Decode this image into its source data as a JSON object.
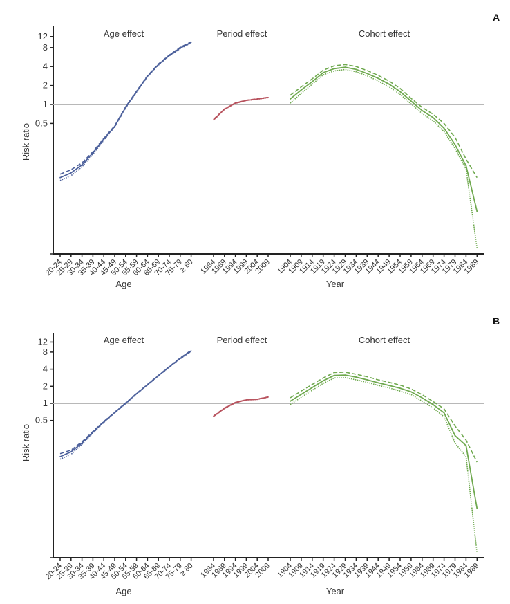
{
  "colors": {
    "age": "#4d619c",
    "period": "#b8535e",
    "cohort": "#6fa94f",
    "ref": "#b8b8b8",
    "axis": "#222222"
  },
  "chart_data": [
    {
      "type": "line",
      "panel": "A",
      "ylabel": "Risk ratio",
      "yscale": "log",
      "yticks": [
        0.5,
        1,
        2,
        4,
        8,
        12
      ],
      "ytick_labels": [
        "0.5",
        "1",
        "2",
        "4",
        "8",
        "12"
      ],
      "reference_line": 1,
      "subplots": [
        {
          "title": "Age effect",
          "xlabel": "Age",
          "color_key": "age",
          "categories": [
            "20-24",
            "25-29",
            "30-34",
            "35-39",
            "40-44",
            "45-49",
            "50-54",
            "55-59",
            "60-64",
            "65-69",
            "70-74",
            "75-79",
            "≥ 80"
          ],
          "estimate": [
            0.069,
            0.082,
            0.11,
            0.17,
            0.28,
            0.45,
            0.9,
            1.6,
            2.8,
            4.3,
            6.0,
            7.9,
            9.7
          ],
          "upper": [
            0.078,
            0.092,
            0.118,
            0.178,
            0.29,
            0.46,
            0.92,
            1.63,
            2.85,
            4.4,
            6.1,
            8.1,
            9.9
          ],
          "lower": [
            0.062,
            0.074,
            0.102,
            0.162,
            0.27,
            0.44,
            0.88,
            1.57,
            2.75,
            4.2,
            5.9,
            7.7,
            9.5
          ]
        },
        {
          "title": "Period effect",
          "xlabel": "",
          "color_key": "period",
          "categories": [
            "1984",
            "1989",
            "1994",
            "1999",
            "2004",
            "2009"
          ],
          "estimate": [
            0.57,
            0.84,
            1.05,
            1.16,
            1.22,
            1.29
          ],
          "upper": [
            0.58,
            0.85,
            1.06,
            1.17,
            1.23,
            1.3
          ],
          "lower": [
            0.56,
            0.83,
            1.04,
            1.15,
            1.21,
            1.28
          ]
        },
        {
          "title": "Cohort effect",
          "xlabel": "Year",
          "color_key": "cohort",
          "categories": [
            "1904",
            "1909",
            "1914",
            "1919",
            "1924",
            "1929",
            "1934",
            "1939",
            "1944",
            "1949",
            "1954",
            "1959",
            "1964",
            "1969",
            "1974",
            "1979",
            "1984",
            "1989"
          ],
          "estimate": [
            1.22,
            1.7,
            2.3,
            3.2,
            3.7,
            3.9,
            3.6,
            3.1,
            2.6,
            2.1,
            1.6,
            1.13,
            0.8,
            0.62,
            0.42,
            0.23,
            0.106,
            0.02
          ],
          "upper": [
            1.4,
            1.9,
            2.55,
            3.5,
            4.1,
            4.3,
            4.0,
            3.45,
            2.9,
            2.35,
            1.8,
            1.25,
            0.9,
            0.7,
            0.5,
            0.3,
            0.136,
            0.069
          ],
          "lower": [
            1.05,
            1.5,
            2.1,
            2.95,
            3.4,
            3.6,
            3.3,
            2.85,
            2.35,
            1.9,
            1.45,
            1.02,
            0.72,
            0.55,
            0.37,
            0.2,
            0.094,
            0.0052
          ]
        }
      ]
    },
    {
      "type": "line",
      "panel": "B",
      "ylabel": "Risk ratio",
      "yscale": "log",
      "yticks": [
        0.5,
        1,
        2,
        4,
        8,
        12
      ],
      "ytick_labels": [
        "0.5",
        "1",
        "2",
        "4",
        "8",
        "12"
      ],
      "reference_line": 1,
      "subplots": [
        {
          "title": "Age effect",
          "xlabel": "Age",
          "color_key": "age",
          "categories": [
            "20-24",
            "25-29",
            "30-34",
            "35-39",
            "40-44",
            "45-49",
            "50-54",
            "55-59",
            "60-64",
            "65-69",
            "70-74",
            "75-79",
            "≥ 80"
          ],
          "estimate": [
            0.115,
            0.14,
            0.2,
            0.31,
            0.47,
            0.69,
            1.0,
            1.48,
            2.13,
            3.08,
            4.4,
            6.2,
            8.4
          ],
          "upper": [
            0.13,
            0.15,
            0.21,
            0.32,
            0.48,
            0.7,
            1.02,
            1.5,
            2.16,
            3.12,
            4.45,
            6.3,
            8.6
          ],
          "lower": [
            0.104,
            0.126,
            0.19,
            0.3,
            0.46,
            0.68,
            0.98,
            1.46,
            2.1,
            3.04,
            4.35,
            6.1,
            8.2
          ]
        },
        {
          "title": "Period effect",
          "xlabel": "",
          "color_key": "period",
          "categories": [
            "1984",
            "1989",
            "1994",
            "1999",
            "2004",
            "2009"
          ],
          "estimate": [
            0.59,
            0.82,
            1.03,
            1.15,
            1.18,
            1.29
          ],
          "upper": [
            0.6,
            0.83,
            1.04,
            1.16,
            1.19,
            1.3
          ],
          "lower": [
            0.58,
            0.81,
            1.02,
            1.14,
            1.17,
            1.28
          ]
        },
        {
          "title": "Cohort effect",
          "xlabel": "Year",
          "color_key": "cohort",
          "categories": [
            "1904",
            "1909",
            "1914",
            "1919",
            "1924",
            "1929",
            "1934",
            "1939",
            "1944",
            "1949",
            "1954",
            "1959",
            "1964",
            "1969",
            "1974",
            "1979",
            "1984",
            "1989"
          ],
          "estimate": [
            1.09,
            1.44,
            1.9,
            2.5,
            3.1,
            3.15,
            2.9,
            2.6,
            2.3,
            2.07,
            1.85,
            1.6,
            1.25,
            0.95,
            0.68,
            0.27,
            0.18,
            0.014
          ],
          "upper": [
            1.25,
            1.65,
            2.15,
            2.8,
            3.5,
            3.55,
            3.25,
            2.95,
            2.6,
            2.35,
            2.1,
            1.8,
            1.42,
            1.08,
            0.8,
            0.4,
            0.226,
            0.092
          ],
          "lower": [
            0.95,
            1.28,
            1.7,
            2.25,
            2.8,
            2.85,
            2.6,
            2.35,
            2.08,
            1.87,
            1.65,
            1.43,
            1.1,
            0.83,
            0.58,
            0.2,
            0.115,
            0.0023
          ]
        }
      ]
    }
  ]
}
